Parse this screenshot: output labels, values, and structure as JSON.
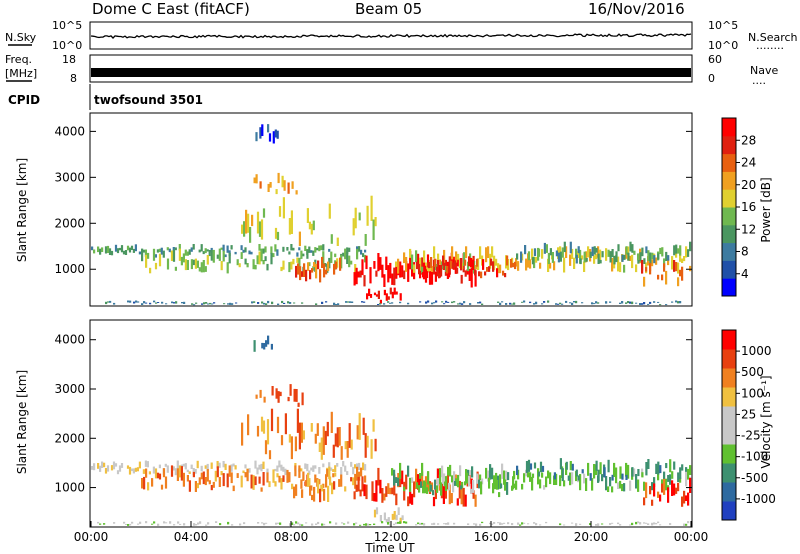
{
  "header": {
    "station": "Dome C East (fitACF)",
    "beam": "Beam 05",
    "date": "16/Nov/2016"
  },
  "noise_panel": {
    "left_label": "N.Sky",
    "right_label": "N.Search",
    "ticks_top": "10^5",
    "ticks_bottom": "10^0",
    "right_legend_marker": "........"
  },
  "freq_panel": {
    "left_label_1": "Freq.",
    "left_label_2": "[MHz]",
    "left_tick_top": "18",
    "left_tick_bottom": "8",
    "right_label": "Nave",
    "right_tick_top": "60",
    "right_tick_bottom": "0",
    "right_legend_marker": "...."
  },
  "cpid": {
    "label": "CPID",
    "program": "twofsound 3501"
  },
  "colors": {
    "power_scale": [
      "#0000ff",
      "#2050a8",
      "#3d7ba0",
      "#4a9660",
      "#6fb850",
      "#e0d030",
      "#f0a020",
      "#e86010",
      "#e02010",
      "#ff0000"
    ],
    "velocity_scale": [
      "#ff0000",
      "#e84010",
      "#f08020",
      "#f0c040",
      "#c8c8c8",
      "#c8c8c8",
      "#60c030",
      "#3d9070",
      "#2e6aa0",
      "#2040c0"
    ],
    "ground_scatter": "#bdbdbd"
  },
  "chart_data": [
    {
      "type": "heatmap",
      "name": "power",
      "ylabel": "Slant Range [km]",
      "xlabel": "",
      "ylim": [
        200,
        4400
      ],
      "xlim": [
        "00:00",
        "24:00"
      ],
      "yticks": [
        "1000",
        "2000",
        "3000",
        "4000"
      ],
      "colorbar": {
        "label": "Power [dB]",
        "ticks": [
          "4",
          "8",
          "12",
          "16",
          "20",
          "24",
          "28"
        ],
        "range": [
          0,
          32
        ]
      }
    },
    {
      "type": "heatmap",
      "name": "velocity",
      "ylabel": "Slant Range [km]",
      "xlabel": "Time UT",
      "ylim": [
        200,
        4400
      ],
      "xlim": [
        "00:00",
        "24:00"
      ],
      "yticks": [
        "1000",
        "2000",
        "3000",
        "4000"
      ],
      "xticks": [
        "00:00",
        "04:00",
        "08:00",
        "12:00",
        "16:00",
        "20:00",
        "00:00"
      ],
      "colorbar": {
        "label": "Velocity [m s⁻¹]",
        "ticks": [
          "1000",
          "500",
          "100",
          "25",
          "-25",
          "-100",
          "-500",
          "-1000"
        ]
      }
    }
  ]
}
